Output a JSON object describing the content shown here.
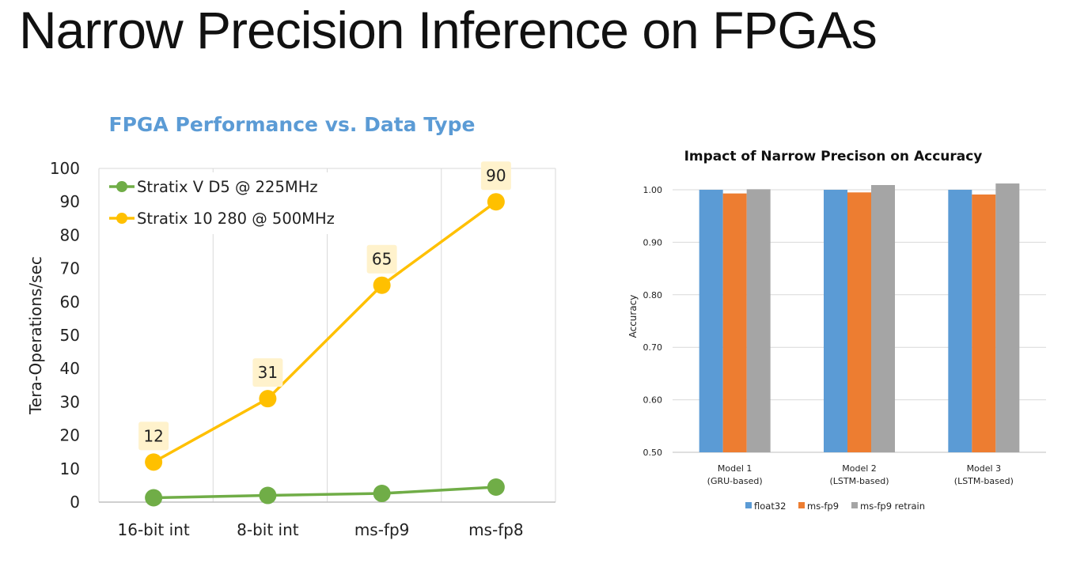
{
  "slide": {
    "title": "Narrow Precision Inference on FPGAs"
  },
  "chart_data": [
    {
      "type": "line",
      "title": "FPGA Performance vs. Data Type",
      "xlabel": "",
      "ylabel": "Tera-Operations/sec",
      "categories": [
        "16-bit int",
        "8-bit int",
        "ms-fp9",
        "ms-fp8"
      ],
      "ylim": [
        0,
        100
      ],
      "yticks": [
        0,
        10,
        20,
        30,
        40,
        50,
        60,
        70,
        80,
        90,
        100
      ],
      "grid": true,
      "legend": "top-left",
      "series": [
        {
          "name": "Stratix V D5 @ 225MHz",
          "values": [
            1.3,
            2.0,
            2.6,
            4.5
          ],
          "color": "#70AD47",
          "labels": []
        },
        {
          "name": "Stratix 10 280 @ 500MHz",
          "values": [
            12,
            31,
            65,
            90
          ],
          "color": "#FFC000",
          "labels": [
            "12",
            "31",
            "65",
            "90"
          ]
        }
      ],
      "colors": {
        "title": "#5B9BD5",
        "label_box": "#FFF2CC",
        "grid": "#D9D9D9"
      }
    },
    {
      "type": "bar",
      "title": "Impact of Narrow Precison on Accuracy",
      "xlabel": "",
      "ylabel": "Accuracy",
      "categories": [
        "Model 1\n(GRU-based)",
        "Model 2\n(LSTM-based)",
        "Model 3\n(LSTM-based)"
      ],
      "ylim": [
        0.5,
        1.05
      ],
      "yticks": [
        "0.50",
        "0.60",
        "0.70",
        "0.80",
        "0.90",
        "1.00"
      ],
      "grid": true,
      "legend": "bottom",
      "series": [
        {
          "name": "float32",
          "values": [
            1.0,
            1.0,
            1.0
          ],
          "color": "#5B9BD5"
        },
        {
          "name": "ms-fp9",
          "values": [
            0.993,
            0.995,
            0.991
          ],
          "color": "#ED7D31"
        },
        {
          "name": "ms-fp9 retrain",
          "values": [
            1.001,
            1.009,
            1.012
          ],
          "color": "#A5A5A5"
        }
      ]
    }
  ]
}
